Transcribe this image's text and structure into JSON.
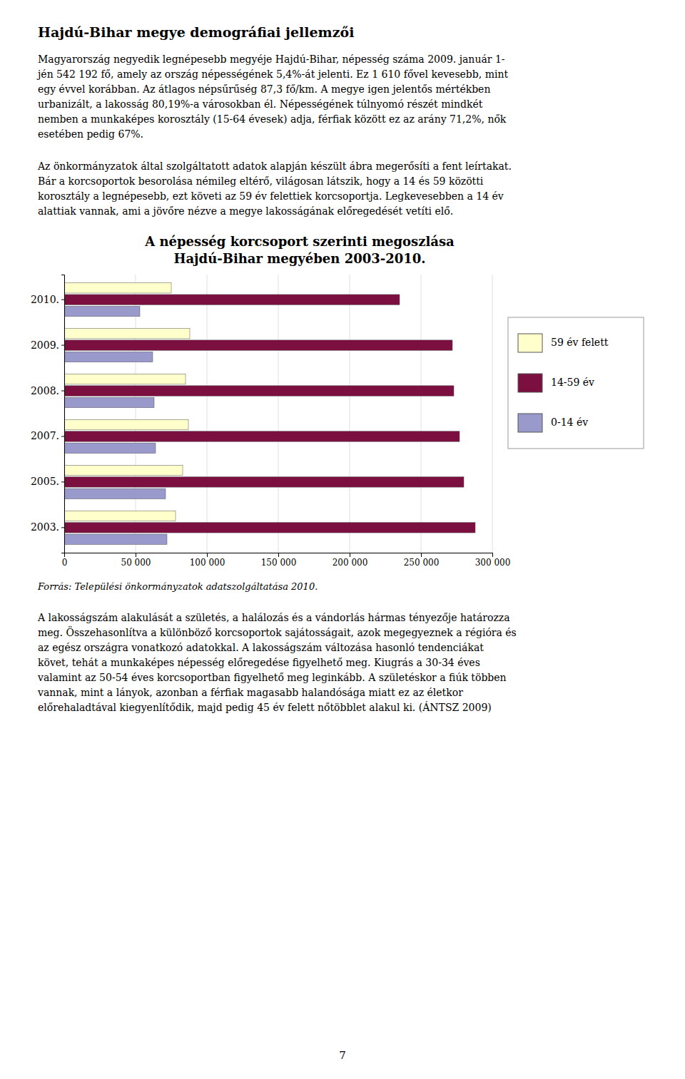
{
  "page": {
    "heading": "Hajdú-Bihar megye demográfiai jellemzői",
    "paragraphs_before": [
      [
        "Magyarország negyedik legnépesebb megyéje Hajdú-Bihar, népesség száma 2009. január 1-",
        "jén 542 192 fő, amely az ország népességének 5,4%-át jelenti. Ez 1 610 fővel kevesebb, mint",
        "egy évvel korábban. Az átlagos népsűrűség 87,3 fő/km. A megye igen jelentős mértékben",
        "urbanizált, a lakosság 80,19%-a városokban él. Népességének túlnyomó részét mindkét",
        "nemben a munkaképes korosztály (15-64 évesek) adja, férfiak között ez az arány 71,2%, nők",
        "esetében pedig 67%."
      ],
      [
        "Az önkormányzatok által szolgáltatott adatok alapján készült ábra megerősíti a fent leírtakat.",
        "Bár a korcsoportok besorolása némileg eltérő, világosan látszik, hogy a 14 és 59 közötti",
        "korosztály a legnépesebb, ezt követi az 59 év felettiek korcsoportja. Legkevesebben a 14 év",
        "alattiak vannak, ami a jövőre nézve a megye lakosságának előregedését vetíti elő."
      ]
    ],
    "source": "Forrás: Települési önkormányzatok adatszolgáltatása 2010.",
    "paragraphs_after": [
      [
        "A lakosságszám alakulását a születés, a halálozás és a vándorlás hármas tényezője határozza",
        "meg. Összehasonlítva a különböző korcsoportok sajátosságait, azok megegyeznek a régióra és",
        "az egész országra vonatkozó adatokkal. A lakosságszám változása hasonló tendenciákat",
        "követ, tehát a munkaképes népesség előregedése figyelhető meg. Kiugrás a 30-34 éves",
        "valamint az 50-54 éves korcsoportban figyelhető meg leginkább. A születéskor a fiúk többen",
        "vannak, mint a lányok, azonban a férfiak magasabb halandósága miatt ez az életkor",
        "előrehaladtával kiegyenlítődik, majd pedig 45 év felett nőtöbblet alakul ki. (ÁNTSZ 2009)"
      ]
    ],
    "page_number": "7"
  },
  "chart_data": {
    "type": "bar",
    "orientation": "horizontal",
    "title": "A népesség korcsoport szerinti megoszlása\nHajdú-Bihar megyében 2003-2010.",
    "categories": [
      "2010.",
      "2009.",
      "2008.",
      "2007.",
      "2005.",
      "2003."
    ],
    "series": [
      {
        "name": "59 év felett",
        "color": "#FFFFCC",
        "values": [
          75000,
          88000,
          85000,
          87000,
          83000,
          78000
        ]
      },
      {
        "name": "14-59 év",
        "color": "#7B1040",
        "values": [
          235000,
          272000,
          273000,
          277000,
          280000,
          288000
        ]
      },
      {
        "name": "0-14 év",
        "color": "#9999CC",
        "values": [
          53000,
          62000,
          63000,
          64000,
          71000,
          72000
        ]
      }
    ],
    "xlim": [
      0,
      300000
    ],
    "xticks": [
      0,
      {
        "value": 50000,
        "label": "50 000"
      },
      {
        "value": 100000,
        "label": "100 000"
      },
      {
        "value": 150000,
        "label": "150 000"
      },
      {
        "value": 200000,
        "label": "200 000"
      },
      {
        "value": 250000,
        "label": "250 000"
      },
      {
        "value": 300000,
        "label": "300 000"
      }
    ],
    "grid": true,
    "legend": "right"
  }
}
